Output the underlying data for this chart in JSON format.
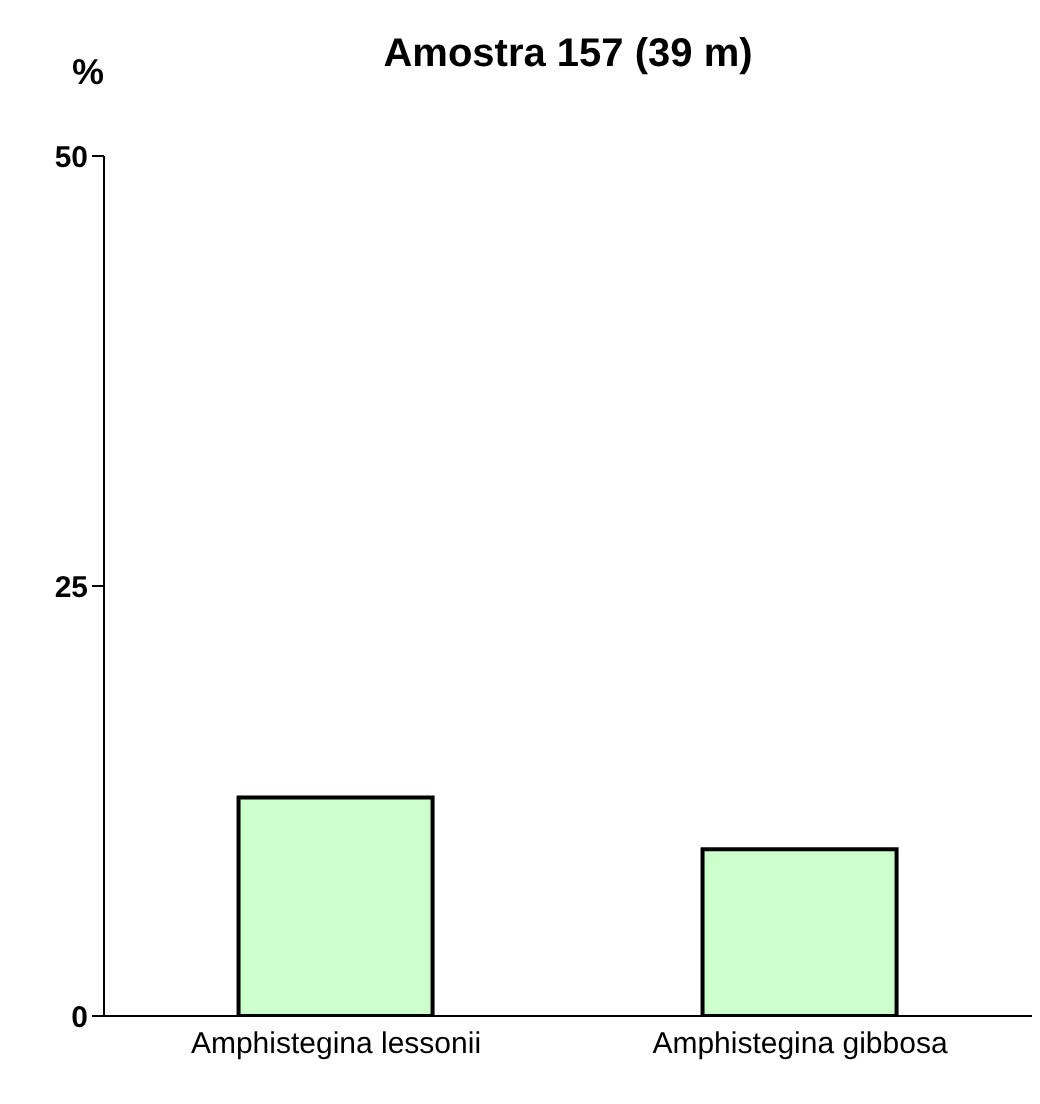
{
  "chart_data": {
    "type": "bar",
    "title": "Amostra 157 (39 m)",
    "ylabel": "%",
    "categories": [
      "Amphistegina lessonii",
      "Amphistegina gibbosa"
    ],
    "values": [
      12.7,
      9.7
    ],
    "color": "#ccffcc",
    "ylim": [
      0,
      50
    ],
    "yticks": [
      0,
      25,
      50
    ],
    "grid": false,
    "legend": false
  }
}
